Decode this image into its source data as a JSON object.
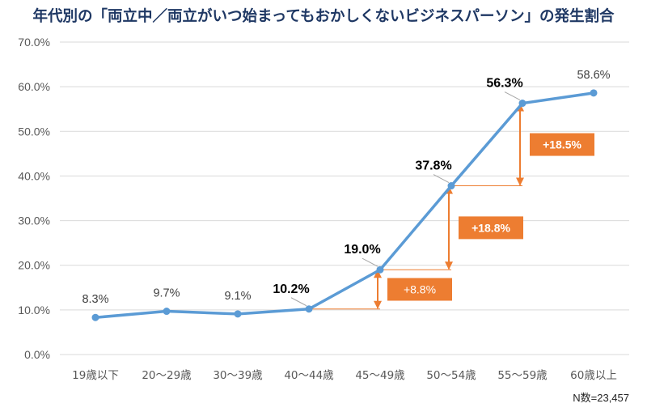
{
  "chart_data": {
    "type": "line",
    "title": "年代別の「両立中／両立がいつ始まってもおかしくないビジネスパーソン」の発生割合",
    "categories": [
      "19歳以下",
      "20〜29歳",
      "30〜39歳",
      "40〜44歳",
      "45〜49歳",
      "50〜54歳",
      "55〜59歳",
      "60歳以上"
    ],
    "series": [
      {
        "values": [
          8.3,
          9.7,
          9.1,
          10.2,
          19.0,
          37.8,
          56.3,
          58.6
        ],
        "labels": [
          "8.3%",
          "9.7%",
          "9.1%",
          "10.2%",
          "19.0%",
          "37.8%",
          "56.3%",
          "58.6%"
        ],
        "highlighted": [
          false,
          false,
          false,
          true,
          true,
          true,
          true,
          false
        ],
        "color": "#5b9bd5"
      }
    ],
    "ylim": [
      0,
      70
    ],
    "yticks": [
      "0.0%",
      "10.0%",
      "20.0%",
      "30.0%",
      "40.0%",
      "50.0%",
      "60.0%",
      "70.0%"
    ],
    "grid": true,
    "annotations": [
      {
        "text": "+8.8%",
        "from": 3,
        "to": 4,
        "bold": false
      },
      {
        "text": "+18.8%",
        "from": 4,
        "to": 5,
        "bold": true
      },
      {
        "text": "+18.5%",
        "from": 5,
        "to": 6,
        "bold": true
      }
    ],
    "note": "N数=23,457",
    "colors": {
      "line": "#5b9bd5",
      "accent": "#ed7d31",
      "grid": "#d9d9d9",
      "title": "#1f3864"
    }
  }
}
